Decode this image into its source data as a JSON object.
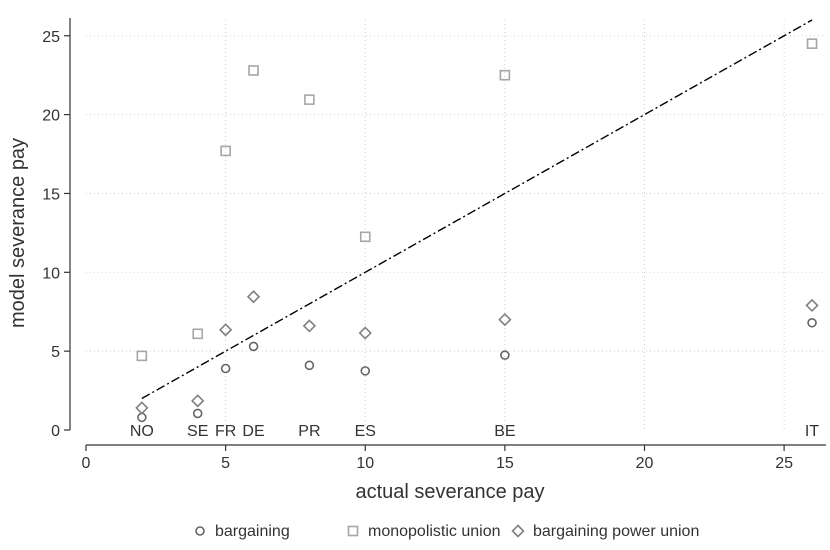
{
  "chart_data": {
    "type": "scatter",
    "title": "",
    "xlabel": "actual severance pay",
    "ylabel": "model severance pay",
    "xlim": [
      0,
      26.5
    ],
    "ylim": [
      0,
      26
    ],
    "xticks": [
      0,
      5,
      10,
      15,
      20,
      25
    ],
    "yticks": [
      0,
      5,
      10,
      15,
      20,
      25
    ],
    "grid": true,
    "legend_position": "bottom",
    "country_labels": [
      {
        "x": 2,
        "label": "NO"
      },
      {
        "x": 4,
        "label": "SE"
      },
      {
        "x": 5,
        "label": "FR"
      },
      {
        "x": 6,
        "label": "DE"
      },
      {
        "x": 8,
        "label": "PR"
      },
      {
        "x": 10,
        "label": "ES"
      },
      {
        "x": 15,
        "label": "BE"
      },
      {
        "x": 26,
        "label": "IT"
      }
    ],
    "series": [
      {
        "name": "bargaining",
        "marker": "circle",
        "color": "#666666",
        "points": [
          {
            "x": 2,
            "y": 0.8
          },
          {
            "x": 4,
            "y": 1.05
          },
          {
            "x": 5,
            "y": 3.9
          },
          {
            "x": 6,
            "y": 5.3
          },
          {
            "x": 8,
            "y": 4.1
          },
          {
            "x": 10,
            "y": 3.75
          },
          {
            "x": 15,
            "y": 4.75
          },
          {
            "x": 26,
            "y": 6.8
          }
        ]
      },
      {
        "name": "monopolistic union",
        "marker": "square",
        "color": "#a6a6a6",
        "points": [
          {
            "x": 2,
            "y": 4.7
          },
          {
            "x": 4,
            "y": 6.1
          },
          {
            "x": 5,
            "y": 17.7
          },
          {
            "x": 6,
            "y": 22.8
          },
          {
            "x": 8,
            "y": 20.95
          },
          {
            "x": 10,
            "y": 12.25
          },
          {
            "x": 15,
            "y": 22.5
          },
          {
            "x": 26,
            "y": 24.5
          }
        ]
      },
      {
        "name": "bargaining power union",
        "marker": "diamond",
        "color": "#808080",
        "points": [
          {
            "x": 2,
            "y": 1.4
          },
          {
            "x": 4,
            "y": 1.85
          },
          {
            "x": 5,
            "y": 6.35
          },
          {
            "x": 6,
            "y": 8.45
          },
          {
            "x": 8,
            "y": 6.6
          },
          {
            "x": 10,
            "y": 6.15
          },
          {
            "x": 15,
            "y": 7.0
          },
          {
            "x": 26,
            "y": 7.9
          }
        ]
      }
    ],
    "reference_line": {
      "style": "dash-dot",
      "color": "#000000",
      "from": {
        "x": 2,
        "y": 2
      },
      "to": {
        "x": 26,
        "y": 26
      }
    }
  }
}
